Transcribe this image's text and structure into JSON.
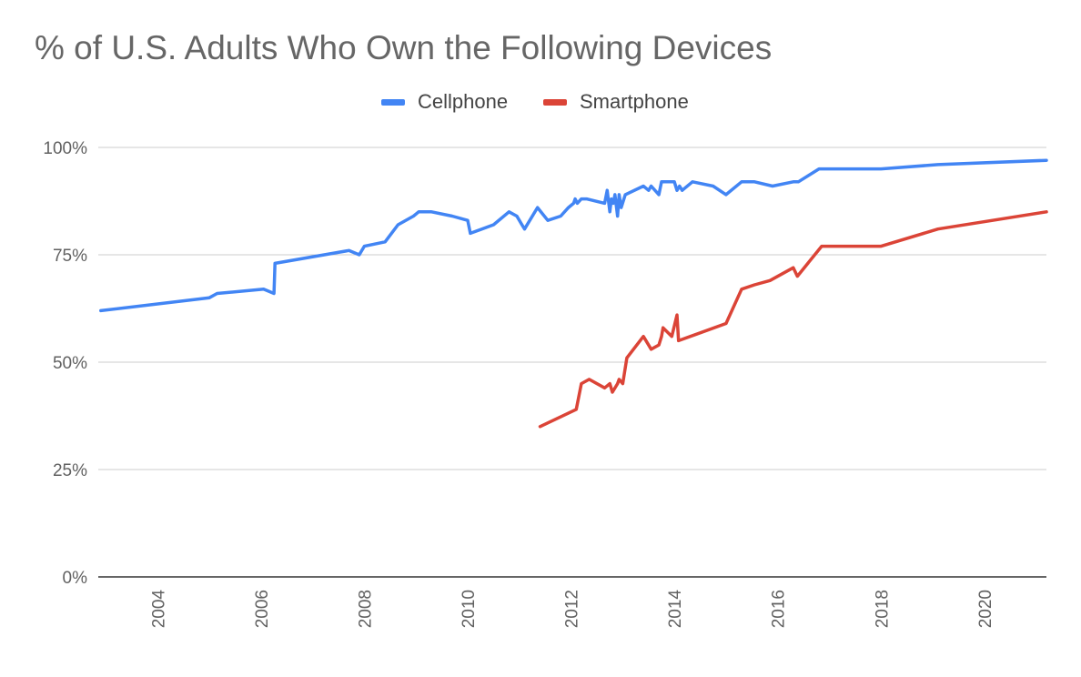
{
  "chart_data": {
    "type": "line",
    "title": "% of U.S. Adults Who Own the Following Devices",
    "xlabel": "",
    "ylabel": "",
    "xlim": [
      2002.85,
      2021.2
    ],
    "ylim": [
      0,
      100
    ],
    "y_ticks": [
      "0%",
      "25%",
      "50%",
      "75%",
      "100%"
    ],
    "y_tick_values": [
      0,
      25,
      50,
      75,
      100
    ],
    "x_ticks": [
      "2004",
      "2006",
      "2008",
      "2010",
      "2012",
      "2014",
      "2016",
      "2018",
      "2020"
    ],
    "x_tick_values": [
      2004,
      2006,
      2008,
      2010,
      2012,
      2014,
      2016,
      2018,
      2020
    ],
    "grid": true,
    "legend_position": "top-center",
    "series": [
      {
        "name": "Cellphone",
        "color": "#4285F4",
        "points": [
          [
            2002.9,
            62
          ],
          [
            2005.0,
            65
          ],
          [
            2005.15,
            66
          ],
          [
            2006.05,
            67
          ],
          [
            2006.25,
            66
          ],
          [
            2006.27,
            73
          ],
          [
            2007.7,
            76
          ],
          [
            2007.9,
            75
          ],
          [
            2008.0,
            77
          ],
          [
            2008.4,
            78
          ],
          [
            2008.65,
            82
          ],
          [
            2008.95,
            84
          ],
          [
            2009.05,
            85
          ],
          [
            2009.3,
            85
          ],
          [
            2009.7,
            84
          ],
          [
            2010.0,
            83
          ],
          [
            2010.05,
            80
          ],
          [
            2010.5,
            82
          ],
          [
            2010.8,
            85
          ],
          [
            2010.95,
            84
          ],
          [
            2011.05,
            82
          ],
          [
            2011.1,
            81
          ],
          [
            2011.35,
            86
          ],
          [
            2011.55,
            83
          ],
          [
            2011.8,
            84
          ],
          [
            2011.95,
            86
          ],
          [
            2012.05,
            87
          ],
          [
            2012.08,
            88
          ],
          [
            2012.12,
            87
          ],
          [
            2012.2,
            88
          ],
          [
            2012.3,
            88
          ],
          [
            2012.65,
            87
          ],
          [
            2012.7,
            90
          ],
          [
            2012.75,
            85
          ],
          [
            2012.78,
            88
          ],
          [
            2012.82,
            87
          ],
          [
            2012.85,
            89
          ],
          [
            2012.9,
            84
          ],
          [
            2012.93,
            89
          ],
          [
            2012.97,
            86
          ],
          [
            2013.05,
            89
          ],
          [
            2013.4,
            91
          ],
          [
            2013.5,
            90
          ],
          [
            2013.55,
            91
          ],
          [
            2013.7,
            89
          ],
          [
            2013.75,
            92
          ],
          [
            2013.85,
            92
          ],
          [
            2014.0,
            92
          ],
          [
            2014.05,
            90
          ],
          [
            2014.1,
            91
          ],
          [
            2014.15,
            90
          ],
          [
            2014.35,
            92
          ],
          [
            2014.75,
            91
          ],
          [
            2015.0,
            89
          ],
          [
            2015.3,
            92
          ],
          [
            2015.55,
            92
          ],
          [
            2015.9,
            91
          ],
          [
            2016.3,
            92
          ],
          [
            2016.4,
            92
          ],
          [
            2016.8,
            95
          ],
          [
            2018.0,
            95
          ],
          [
            2019.1,
            96
          ],
          [
            2021.2,
            97
          ]
        ]
      },
      {
        "name": "Smartphone",
        "color": "#DB4437",
        "points": [
          [
            2011.4,
            35
          ],
          [
            2012.1,
            39
          ],
          [
            2012.2,
            45
          ],
          [
            2012.35,
            46
          ],
          [
            2012.65,
            44
          ],
          [
            2012.75,
            45
          ],
          [
            2012.8,
            43
          ],
          [
            2012.9,
            45
          ],
          [
            2012.93,
            46
          ],
          [
            2013.0,
            45
          ],
          [
            2013.08,
            51
          ],
          [
            2013.4,
            56
          ],
          [
            2013.55,
            53
          ],
          [
            2013.7,
            54
          ],
          [
            2013.75,
            56
          ],
          [
            2013.78,
            58
          ],
          [
            2013.95,
            56
          ],
          [
            2014.05,
            61
          ],
          [
            2014.08,
            55
          ],
          [
            2015.0,
            59
          ],
          [
            2015.3,
            67
          ],
          [
            2015.55,
            68
          ],
          [
            2015.85,
            69
          ],
          [
            2016.3,
            72
          ],
          [
            2016.38,
            70
          ],
          [
            2016.85,
            77
          ],
          [
            2018.0,
            77
          ],
          [
            2019.1,
            81
          ],
          [
            2021.2,
            85
          ]
        ]
      }
    ]
  }
}
